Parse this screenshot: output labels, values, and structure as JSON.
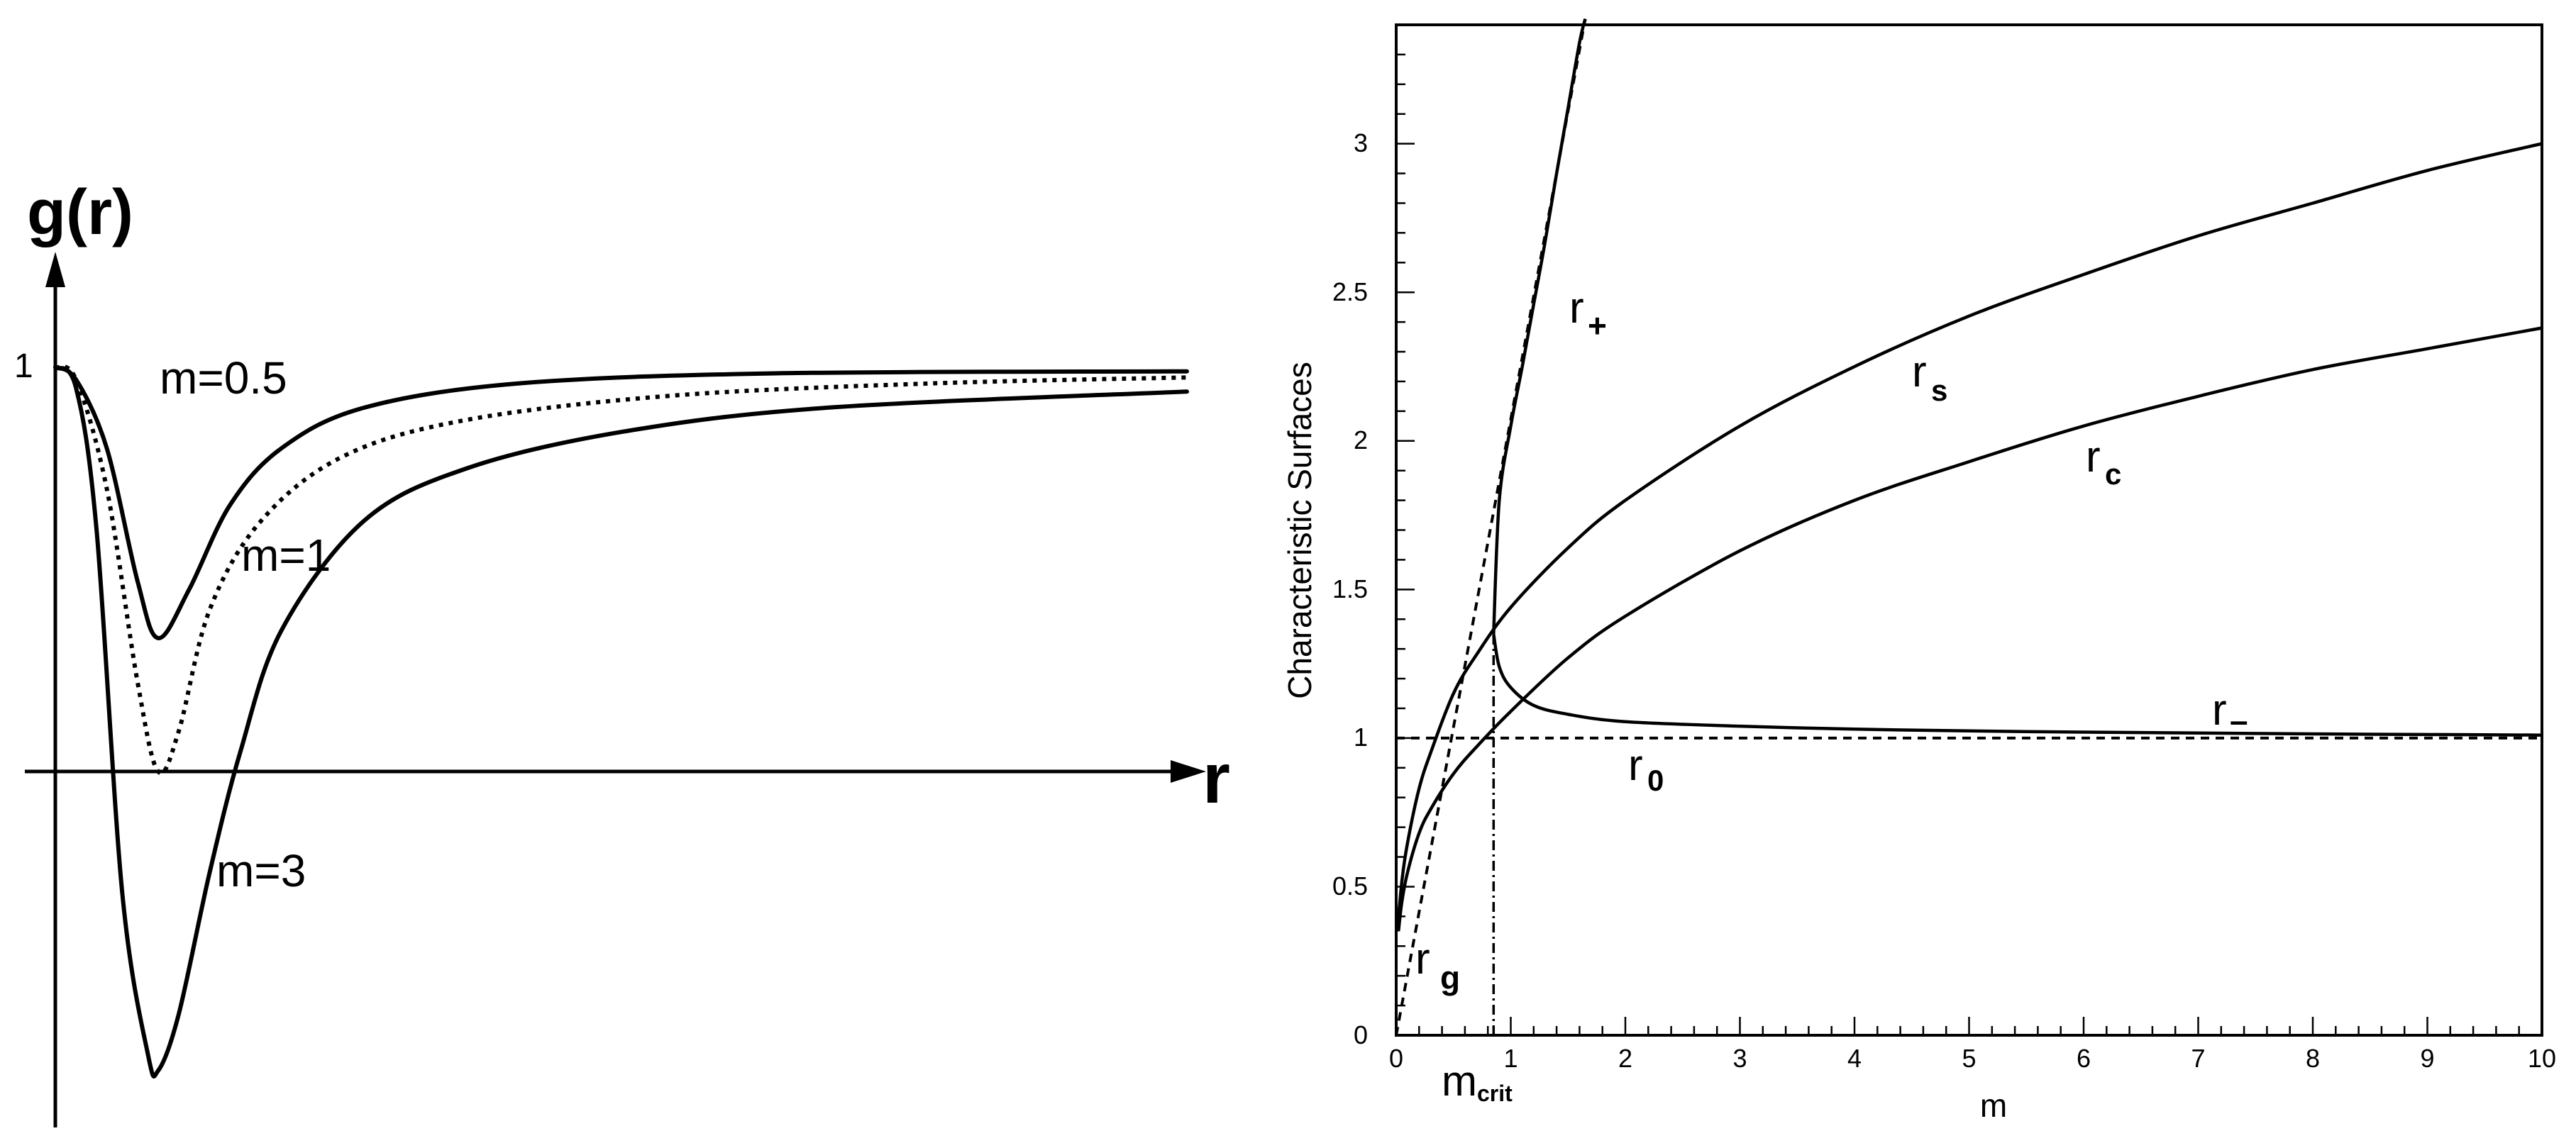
{
  "chart_data": [
    {
      "type": "line",
      "panel": "left",
      "ylabel": "g(r)",
      "xlabel": "r",
      "ytick_label": "1",
      "axis_ticks": "none",
      "series": [
        {
          "name": "m=0.5",
          "style": "solid",
          "x": [
            0,
            0.2,
            0.5,
            0.8,
            1.0,
            1.3,
            1.7,
            2.2,
            3.0,
            4.5,
            7.0,
            11.0
          ],
          "y": [
            1.0,
            0.97,
            0.8,
            0.47,
            0.33,
            0.45,
            0.66,
            0.8,
            0.9,
            0.96,
            0.985,
            0.99
          ]
        },
        {
          "name": "m=1",
          "style": "dotted",
          "x": [
            0,
            0.2,
            0.5,
            0.8,
            1.0,
            1.2,
            1.5,
            2.0,
            2.8,
            4.0,
            6.0,
            8.5,
            11.0
          ],
          "y": [
            1.0,
            0.97,
            0.7,
            0.22,
            0.0,
            0.1,
            0.4,
            0.62,
            0.78,
            0.87,
            0.93,
            0.96,
            0.975
          ]
        },
        {
          "name": "m=3",
          "style": "solid",
          "x": [
            0,
            0.2,
            0.4,
            0.65,
            0.9,
            1.0,
            1.2,
            1.5,
            1.8,
            2.2,
            3.0,
            4.0,
            5.5,
            7.5,
            11.0
          ],
          "y": [
            1.0,
            0.95,
            0.6,
            -0.3,
            -0.7,
            -0.74,
            -0.6,
            -0.25,
            0.05,
            0.35,
            0.62,
            0.75,
            0.84,
            0.9,
            0.94
          ]
        }
      ]
    },
    {
      "type": "line",
      "panel": "right",
      "xlabel": "m",
      "ylabel": "Characteristic Surfaces",
      "xlim": [
        0,
        10
      ],
      "ylim": [
        0,
        3.4
      ],
      "xticks": [
        0,
        1,
        2,
        3,
        4,
        5,
        6,
        7,
        8,
        9,
        10
      ],
      "yticks": [
        0,
        0.5,
        1,
        1.5,
        2,
        2.5,
        3
      ],
      "ytick_labels": [
        "0",
        "0.5",
        "1",
        "1.5",
        "2",
        "2.5",
        "3"
      ],
      "m_crit": 0.85,
      "m_crit_label": "m",
      "m_crit_sub": "crit",
      "grid": false,
      "series": [
        {
          "name": "r+",
          "label_main": "r",
          "label_sub": "+",
          "style": "solid",
          "x": [
            0.85,
            0.9,
            1.0,
            1.1,
            1.2,
            1.3,
            1.4,
            1.5,
            1.6,
            1.65
          ],
          "y": [
            1.35,
            1.8,
            2.05,
            2.25,
            2.46,
            2.67,
            2.9,
            3.12,
            3.34,
            3.42
          ]
        },
        {
          "name": "r-",
          "label_main": "r",
          "label_sub": "–",
          "style": "solid",
          "x": [
            0.85,
            0.9,
            1.0,
            1.2,
            1.5,
            2.0,
            3.0,
            4.0,
            5.0,
            6.0,
            7.0,
            8.0,
            9.0,
            10.0
          ],
          "y": [
            1.35,
            1.24,
            1.17,
            1.11,
            1.08,
            1.055,
            1.04,
            1.03,
            1.024,
            1.02,
            1.017,
            1.014,
            1.012,
            1.01
          ]
        },
        {
          "name": "rs",
          "label_main": "r",
          "label_sub": "s",
          "style": "solid",
          "x": [
            0.01,
            0.05,
            0.1,
            0.2,
            0.3,
            0.5,
            0.7,
            1.0,
            1.5,
            2.0,
            3.0,
            4.0,
            5.0,
            6.0,
            7.0,
            8.0,
            9.0,
            10.0
          ],
          "y": [
            0.35,
            0.52,
            0.65,
            0.83,
            0.95,
            1.15,
            1.28,
            1.44,
            1.64,
            1.8,
            2.05,
            2.25,
            2.42,
            2.56,
            2.69,
            2.8,
            2.91,
            3.0
          ]
        },
        {
          "name": "rc",
          "label_main": "r",
          "label_sub": "c",
          "style": "solid",
          "x": [
            0.02,
            0.05,
            0.1,
            0.2,
            0.3,
            0.5,
            0.7,
            1.0,
            1.5,
            2.0,
            3.0,
            4.0,
            5.0,
            6.0,
            7.0,
            8.0,
            9.0,
            10.0
          ],
          "y": [
            0.35,
            0.45,
            0.55,
            0.68,
            0.76,
            0.88,
            0.97,
            1.09,
            1.27,
            1.41,
            1.63,
            1.8,
            1.93,
            2.05,
            2.15,
            2.24,
            2.31,
            2.38
          ]
        },
        {
          "name": "rg",
          "label_main": "r",
          "label_sub": "g",
          "style": "dashed",
          "x": [
            0,
            1.65
          ],
          "y": [
            0,
            3.42
          ]
        },
        {
          "name": "r0",
          "label_main": "r",
          "label_sub": "0",
          "style": "dashed",
          "x": [
            0,
            10
          ],
          "y": [
            1,
            1
          ]
        }
      ]
    }
  ]
}
